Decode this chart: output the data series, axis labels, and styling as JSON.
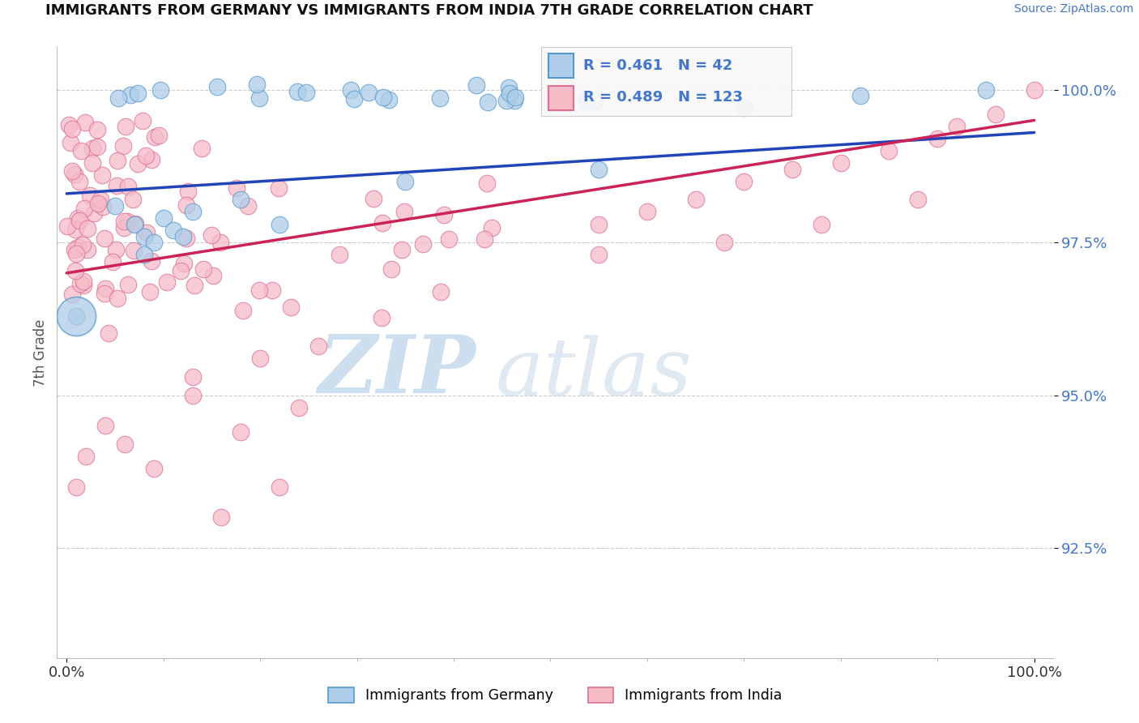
{
  "title": "IMMIGRANTS FROM GERMANY VS IMMIGRANTS FROM INDIA 7TH GRADE CORRELATION CHART",
  "source": "Source: ZipAtlas.com",
  "ylabel": "7th Grade",
  "ytick_labels": [
    "92.5%",
    "95.0%",
    "97.5%",
    "100.0%"
  ],
  "ytick_values": [
    0.925,
    0.95,
    0.975,
    1.0
  ],
  "xtick_labels": [
    "0.0%",
    "100.0%"
  ],
  "xtick_values": [
    0.0,
    1.0
  ],
  "xlim": [
    -0.01,
    1.02
  ],
  "ylim": [
    0.907,
    1.007
  ],
  "germany_face": "#aecde8",
  "germany_edge": "#5599cc",
  "india_face": "#f5bcc8",
  "india_edge": "#e07090",
  "trend_germany": "#2244bb",
  "trend_india": "#cc2255",
  "R_germany": 0.461,
  "N_germany": 42,
  "R_india": 0.489,
  "N_india": 123,
  "label_germany": "Immigrants from Germany",
  "label_india": "Immigrants from India",
  "watermark_zip": "ZIP",
  "watermark_atlas": "atlas",
  "grid_color": "#cccccc",
  "tick_color": "#4477cc",
  "legend_box_color": "#eeeeee"
}
